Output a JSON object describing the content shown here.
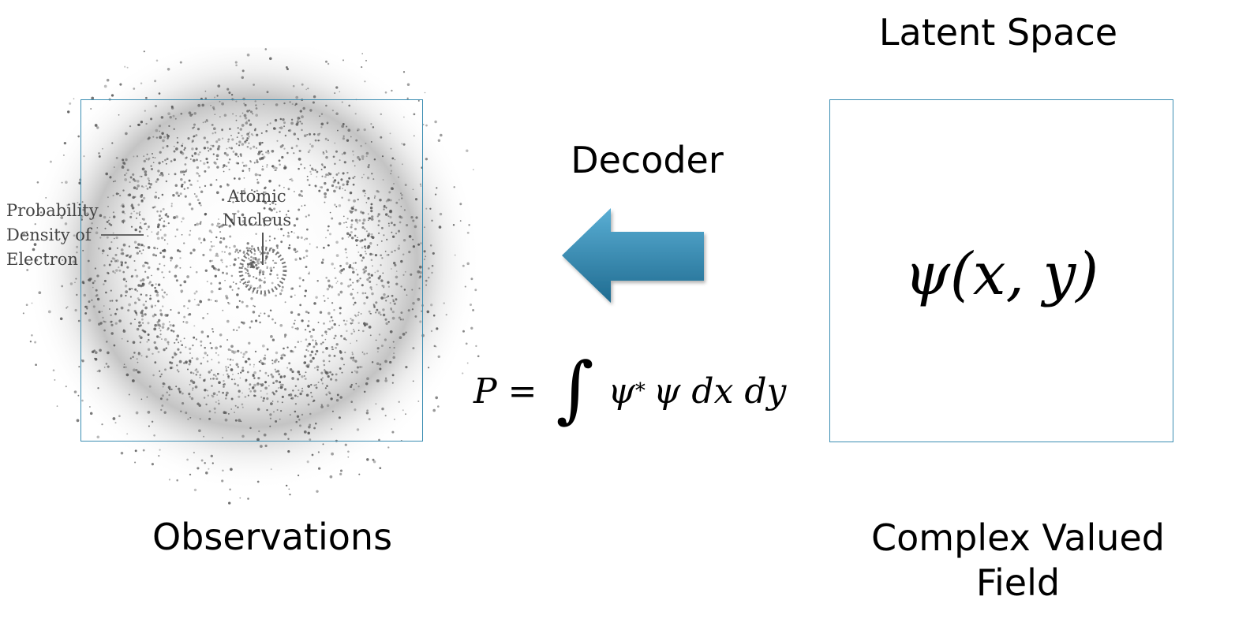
{
  "latent_title": "Latent Space",
  "decoder_label": "Decoder",
  "latent_field_text": "ψ(x, y)",
  "formula": {
    "lhs": "P =",
    "integral": "∫",
    "integrand": "ψ",
    "star": "*",
    "rest": "ψ dx dy"
  },
  "observations_label": "Observations",
  "field_label_line1": "Complex Valued",
  "field_label_line2": "Field",
  "image_labels": {
    "prob_line1": "Probability",
    "prob_line2": "Density of",
    "prob_line3": "Electron",
    "nucleus_line1": "Atomic",
    "nucleus_line2": "Nucleus"
  },
  "colors": {
    "frame": "#3b8db2",
    "arrow_light": "#5aaed4",
    "arrow_dark": "#1f6b90"
  }
}
